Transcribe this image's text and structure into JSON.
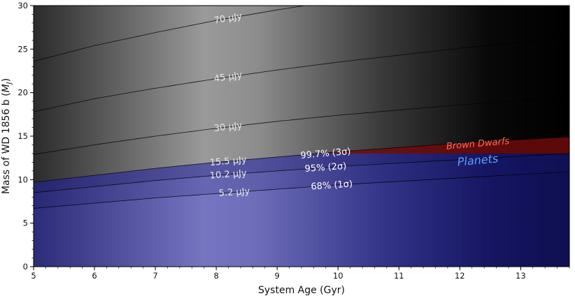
{
  "chart_data": {
    "type": "area",
    "xlabel": "System Age (Gyr)",
    "ylabel": "Mass of WD 1856 b (M_J)",
    "ylabel_main": "Mass of WD 1856 b (",
    "ylabel_unit": "M",
    "ylabel_sub": "J",
    "ylabel_close": ")",
    "xlim": [
      5,
      13.8
    ],
    "ylim": [
      0,
      30
    ],
    "x_ticks": [
      5,
      6,
      7,
      8,
      9,
      10,
      11,
      12,
      13
    ],
    "y_ticks": [
      0,
      5,
      10,
      15,
      20,
      25,
      30
    ],
    "flux_contours": [
      {
        "label": "70 μJy",
        "x": [
          5,
          6,
          7,
          8,
          9,
          10,
          11,
          12,
          13,
          13.8
        ],
        "y": [
          23.6,
          25.4,
          26.9,
          28.3,
          29.5,
          30.6,
          31.6,
          32.5,
          33.3,
          34.0
        ],
        "label_x": 8.2
      },
      {
        "label": "45 μJy",
        "x": [
          5,
          6,
          7,
          8,
          9,
          10,
          11,
          12,
          13,
          13.8
        ],
        "y": [
          17.8,
          19.3,
          20.5,
          21.6,
          22.6,
          23.5,
          24.3,
          25.1,
          25.8,
          26.3
        ],
        "label_x": 8.2
      },
      {
        "label": "30 μJy",
        "x": [
          5,
          6,
          7,
          8,
          9,
          10,
          11,
          12,
          13,
          13.8
        ],
        "y": [
          12.9,
          14.0,
          15.0,
          15.9,
          16.7,
          17.4,
          18.0,
          18.6,
          19.1,
          19.5
        ],
        "label_x": 8.2
      },
      {
        "label": "15.5 μJy",
        "x": [
          5,
          6,
          7,
          8,
          9,
          10,
          11,
          12,
          13,
          13.8
        ],
        "y": [
          9.7,
          10.5,
          11.3,
          12.0,
          12.6,
          13.2,
          13.7,
          14.2,
          14.6,
          14.9
        ],
        "label_x": 8.2
      },
      {
        "label": "10.2 μJy",
        "x": [
          5,
          6,
          7,
          8,
          9,
          10,
          11,
          12,
          13,
          13.8
        ],
        "y": [
          8.5,
          9.2,
          9.9,
          10.5,
          11.0,
          11.5,
          11.9,
          12.3,
          12.7,
          13.0
        ],
        "label_x": 8.2
      },
      {
        "label": "5.2 μJy",
        "x": [
          5,
          6,
          7,
          8,
          9,
          10,
          11,
          12,
          13,
          13.8
        ],
        "y": [
          6.7,
          7.3,
          7.9,
          8.4,
          8.9,
          9.4,
          9.8,
          10.2,
          10.6,
          10.9
        ],
        "label_x": 8.3
      }
    ],
    "confidence_labels": [
      {
        "label": "99.7% (3σ)",
        "x": 9.8
      },
      {
        "label": "95% (2σ)",
        "x": 9.8
      },
      {
        "label": "68% (1σ)",
        "x": 9.9
      }
    ],
    "planet_boundary_mjup": 13,
    "regions": [
      {
        "label": "Brown Dwarfs",
        "color": "#ff6b5a",
        "x": 12.3,
        "y": 13.8
      },
      {
        "label": "Planets",
        "color": "#5aa0ff",
        "x": 12.3,
        "y": 11.8
      }
    ],
    "colors": {
      "background_light": "#9a9a9a",
      "background_dark": "#000000",
      "planet_fill_light": "#9b9bdc",
      "planet_fill_dark": "#000033",
      "excluded_band": "#1e1e6e",
      "brown_dwarf_band": "#6e0a0a",
      "contour_line": "#000000"
    }
  }
}
